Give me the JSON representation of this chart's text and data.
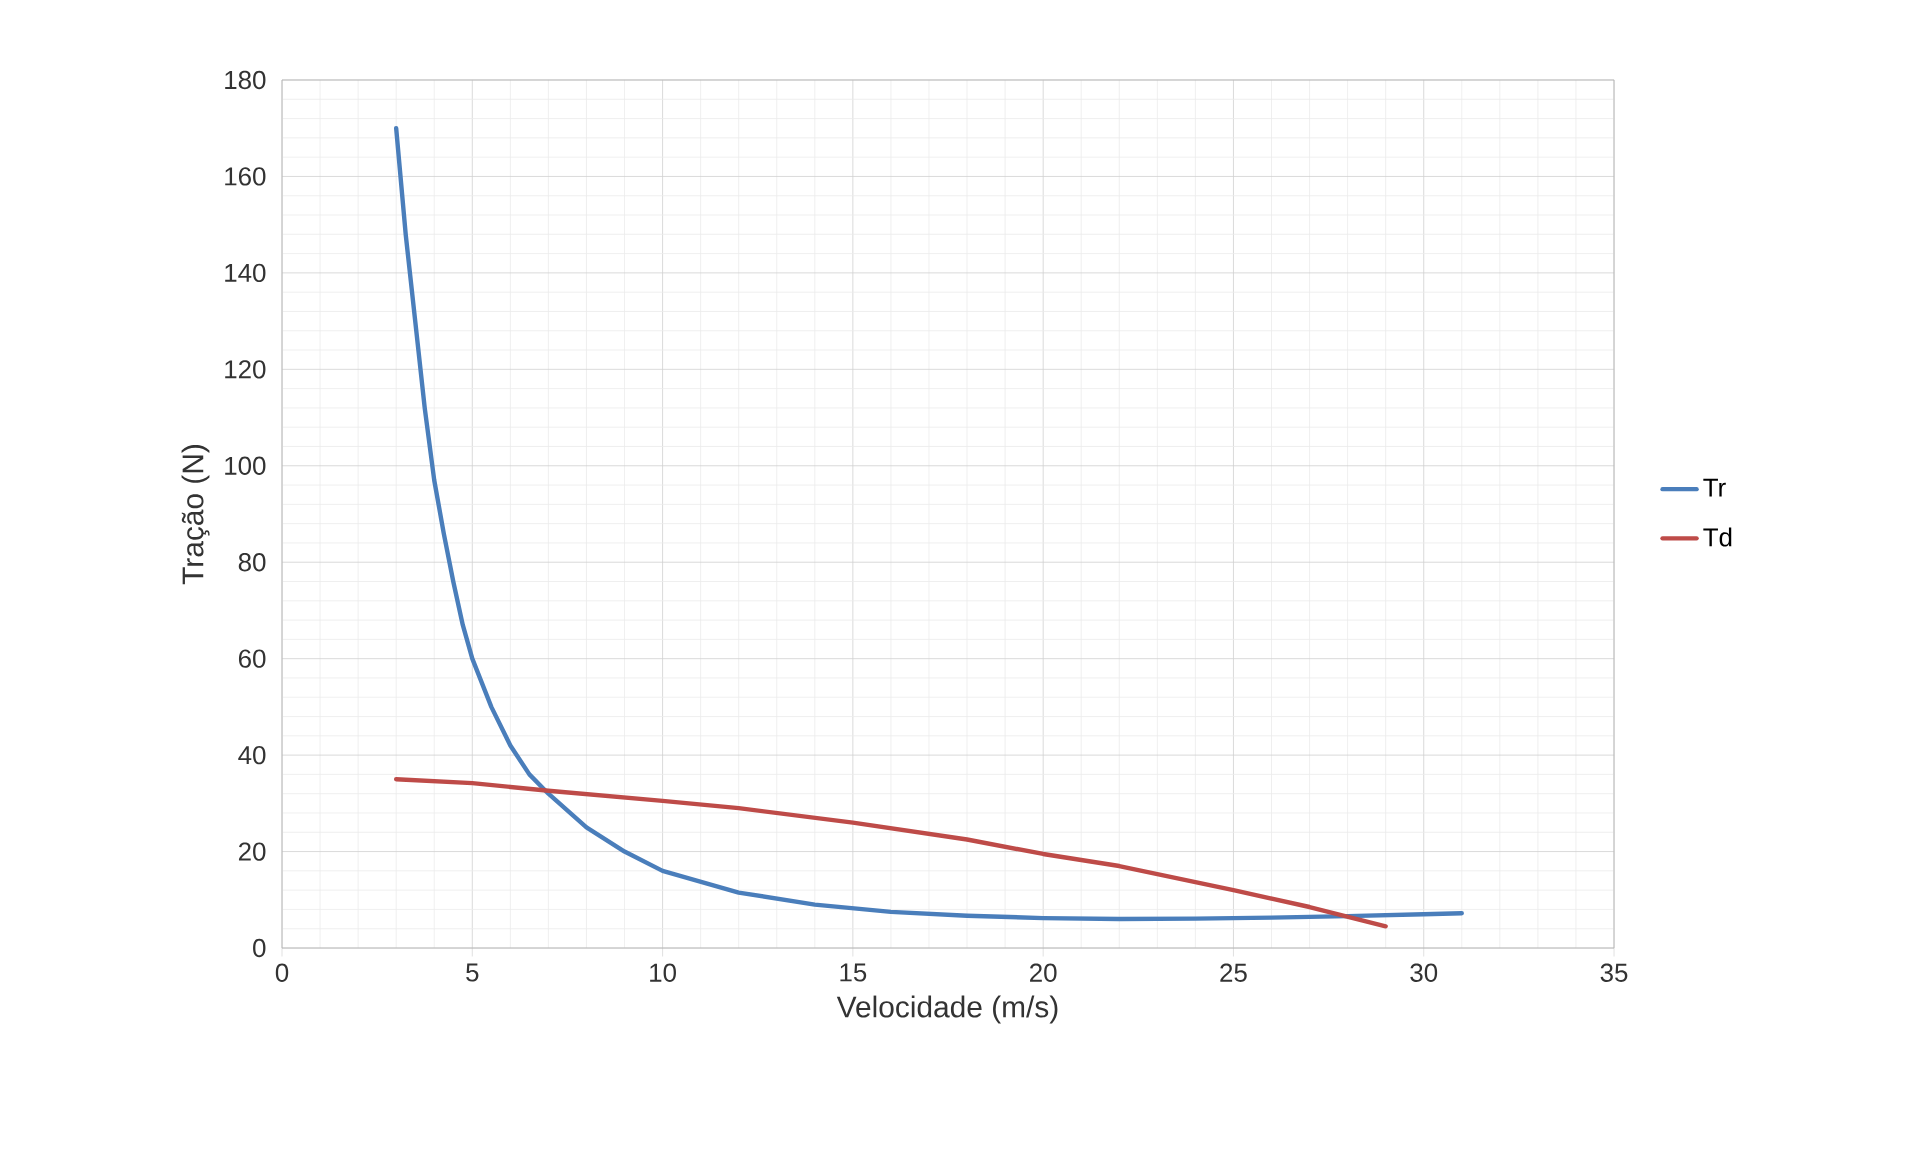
{
  "chart_data": {
    "type": "line",
    "xlabel": "Velocidade (m/s)",
    "ylabel": "Tração (N)",
    "xlim": [
      0,
      35
    ],
    "ylim": [
      0,
      180
    ],
    "xticks": [
      0,
      5,
      10,
      15,
      20,
      25,
      30,
      35
    ],
    "yticks": [
      0,
      20,
      40,
      60,
      80,
      100,
      120,
      140,
      160,
      180
    ],
    "grid": true,
    "legend": "right",
    "marker": "none",
    "line_style": "solid",
    "series": [
      {
        "name": "Tr",
        "color": "#4a7ebb",
        "x": [
          3,
          3.25,
          3.5,
          3.75,
          4,
          4.25,
          4.5,
          4.75,
          5,
          5.5,
          6,
          6.5,
          7,
          8,
          9,
          10,
          12,
          14,
          16,
          18,
          20,
          22,
          24,
          26,
          28,
          30,
          31
        ],
        "values": [
          170,
          148,
          130,
          112,
          97,
          86,
          76,
          67,
          60,
          50,
          42,
          36,
          32,
          25,
          20,
          16,
          11.5,
          9,
          7.5,
          6.7,
          6.2,
          6,
          6.1,
          6.3,
          6.6,
          7,
          7.2
        ]
      },
      {
        "name": "Td",
        "color": "#be4b48",
        "x": [
          3,
          5,
          7,
          10,
          12,
          15,
          18,
          20,
          22,
          25,
          27,
          29
        ],
        "values": [
          35,
          34.2,
          32.6,
          30.5,
          29,
          26,
          22.5,
          19.5,
          17,
          12,
          8.5,
          4.5
        ]
      }
    ]
  }
}
